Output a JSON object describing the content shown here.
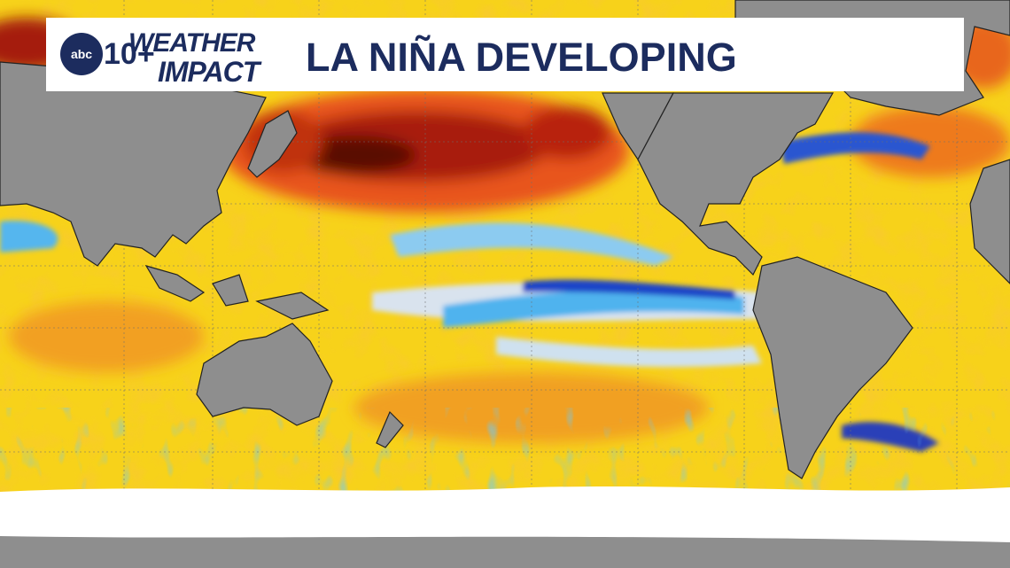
{
  "header": {
    "logo": {
      "network": "abc",
      "channel": "10+"
    },
    "brand": [
      "WEATHER",
      "IMPACT"
    ],
    "title": "LA NIÑA DEVELOPING"
  }
}
